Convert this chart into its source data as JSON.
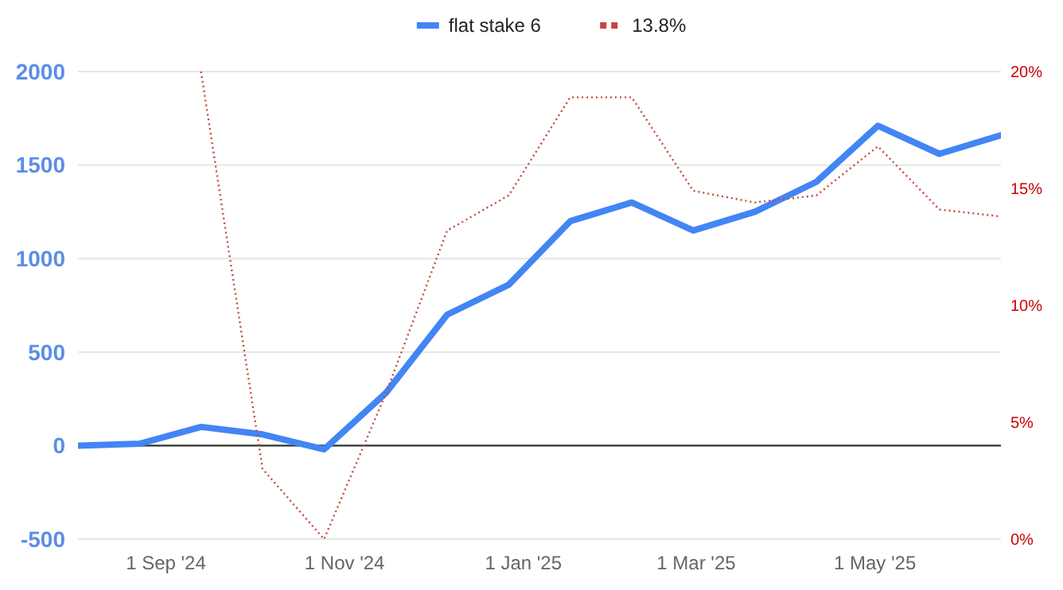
{
  "chart_data": {
    "type": "line",
    "x": [
      "2024-08-02",
      "2024-08-23",
      "2024-09-13",
      "2024-10-04",
      "2024-10-25",
      "2024-11-15",
      "2024-12-06",
      "2024-12-27",
      "2025-01-17",
      "2025-02-07",
      "2025-02-28",
      "2025-03-21",
      "2025-04-11",
      "2025-05-02",
      "2025-05-23",
      "2025-06-13"
    ],
    "series": [
      {
        "name": "flat stake 6",
        "color": "#4285f4",
        "values": [
          0,
          10,
          100,
          60,
          -20,
          280,
          700,
          860,
          1200,
          1300,
          1150,
          1250,
          1410,
          1710,
          1560,
          1660
        ],
        "line_style": "solid"
      },
      {
        "name": "13.8%",
        "color": "#c5463b",
        "axis": "y2",
        "line_style": "dotted",
        "values": [
          null,
          null,
          20,
          3.0,
          0,
          6.2,
          13.2,
          14.7,
          18.9,
          18.9,
          14.9,
          14.4,
          14.7,
          16.8,
          14.1,
          13.8
        ]
      }
    ],
    "xlim": [
      "2024-08-02",
      "2025-06-13"
    ],
    "xticks": [
      {
        "value": "2024-09-01",
        "label": "1 Sep '24"
      },
      {
        "value": "2024-11-01",
        "label": "1 Nov '24"
      },
      {
        "value": "2025-01-01",
        "label": "1 Jan '25"
      },
      {
        "value": "2025-03-01",
        "label": "1 Mar '25"
      },
      {
        "value": "2025-05-01",
        "label": "1 May '25"
      }
    ],
    "ylim": [
      -500,
      2000
    ],
    "yticks": [
      -500,
      0,
      500,
      1000,
      1500,
      2000
    ],
    "y2lim": [
      0,
      20
    ],
    "y2ticks": [
      {
        "value": 0,
        "label": "0%"
      },
      {
        "value": 5,
        "label": "5%"
      },
      {
        "value": 10,
        "label": "10%"
      },
      {
        "value": 15,
        "label": "15%"
      },
      {
        "value": 20,
        "label": "20%"
      }
    ],
    "ref_lines": [
      {
        "axis": "y",
        "value": 0,
        "color": "#333333"
      }
    ],
    "grid": "y",
    "legend": "top"
  }
}
